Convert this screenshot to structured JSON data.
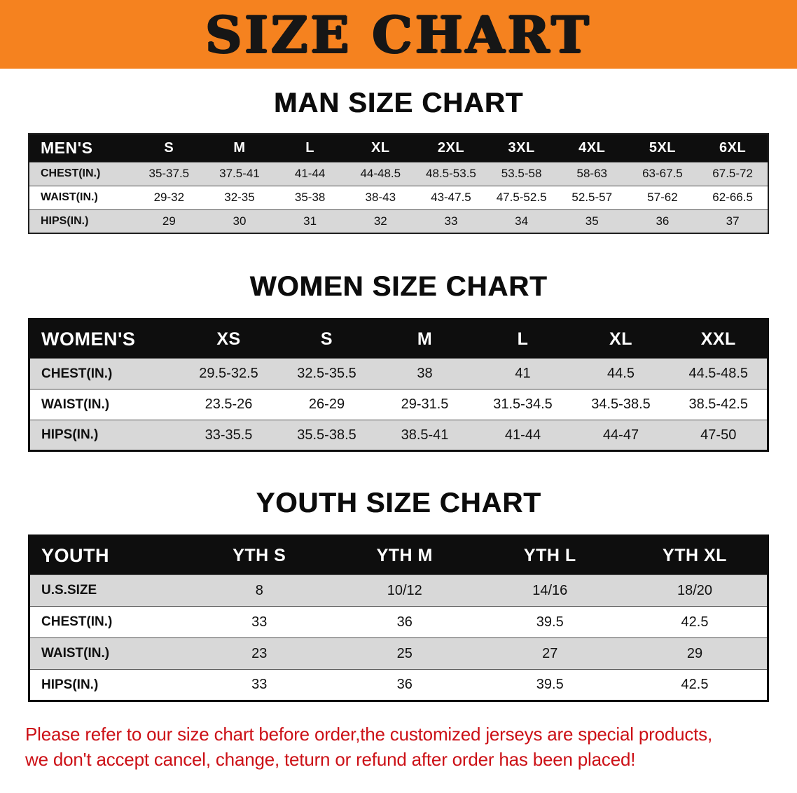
{
  "banner": {
    "title": "SIZE CHART"
  },
  "men": {
    "heading": "MAN SIZE CHART",
    "table": {
      "header": [
        "MEN'S",
        "S",
        "M",
        "L",
        "XL",
        "2XL",
        "3XL",
        "4XL",
        "5XL",
        "6XL"
      ],
      "rows": [
        [
          "CHEST(IN.)",
          "35-37.5",
          "37.5-41",
          "41-44",
          "44-48.5",
          "48.5-53.5",
          "53.5-58",
          "58-63",
          "63-67.5",
          "67.5-72"
        ],
        [
          "WAIST(IN.)",
          "29-32",
          "32-35",
          "35-38",
          "38-43",
          "43-47.5",
          "47.5-52.5",
          "52.5-57",
          "57-62",
          "62-66.5"
        ],
        [
          "HIPS(IN.)",
          "29",
          "30",
          "31",
          "32",
          "33",
          "34",
          "35",
          "36",
          "37"
        ]
      ]
    }
  },
  "women": {
    "heading": "WOMEN SIZE CHART",
    "table": {
      "header": [
        "WOMEN'S",
        "XS",
        "S",
        "M",
        "L",
        "XL",
        "XXL"
      ],
      "rows": [
        [
          "CHEST(IN.)",
          "29.5-32.5",
          "32.5-35.5",
          "38",
          "41",
          "44.5",
          "44.5-48.5"
        ],
        [
          "WAIST(IN.)",
          "23.5-26",
          "26-29",
          "29-31.5",
          "31.5-34.5",
          "34.5-38.5",
          "38.5-42.5"
        ],
        [
          "HIPS(IN.)",
          "33-35.5",
          "35.5-38.5",
          "38.5-41",
          "41-44",
          "44-47",
          "47-50"
        ]
      ]
    }
  },
  "youth": {
    "heading": "YOUTH SIZE CHART",
    "table": {
      "header": [
        "YOUTH",
        "YTH S",
        "YTH M",
        "YTH L",
        "YTH XL"
      ],
      "rows": [
        [
          "U.S.SIZE",
          "8",
          "10/12",
          "14/16",
          "18/20"
        ],
        [
          "CHEST(IN.)",
          "33",
          "36",
          "39.5",
          "42.5"
        ],
        [
          "WAIST(IN.)",
          "23",
          "25",
          "27",
          "29"
        ],
        [
          "HIPS(IN.)",
          "33",
          "36",
          "39.5",
          "42.5"
        ]
      ]
    }
  },
  "disclaimer": {
    "line1": "Please refer to our size chart before order,the customized jerseys are special products,",
    "line2": "we don't accept cancel, change, teturn or refund after order has been placed!"
  },
  "colors": {
    "banner_bg": "#F5821F",
    "table_header_bg": "#0E0E0E",
    "row_alt_bg": "#D8D8D8",
    "disclaimer_text": "#CC1016"
  }
}
